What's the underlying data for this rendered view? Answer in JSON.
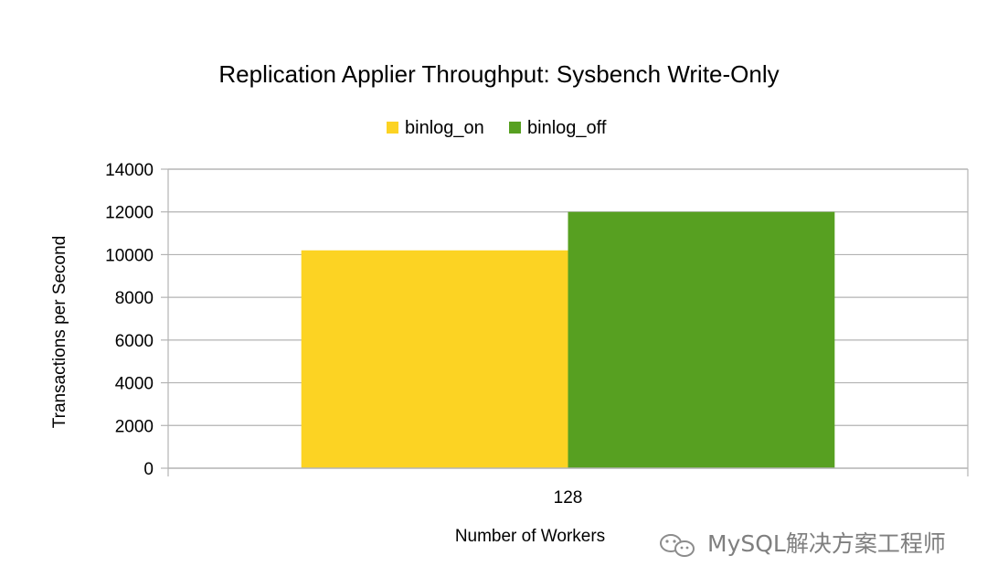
{
  "chart_data": {
    "type": "bar",
    "title": "Replication Applier Throughput: Sysbench Write-Only",
    "xlabel": "Number of Workers",
    "ylabel": "Transactions per Second",
    "categories": [
      "128"
    ],
    "series": [
      {
        "name": "binlog_on",
        "values": [
          10200
        ],
        "color": "#FCD323"
      },
      {
        "name": "binlog_off",
        "values": [
          12000
        ],
        "color": "#57A021"
      }
    ],
    "ylim": [
      0,
      14000
    ],
    "yticks": [
      0,
      2000,
      4000,
      6000,
      8000,
      10000,
      12000,
      14000
    ],
    "grid": true,
    "legend_position": "top-center"
  },
  "watermark": {
    "text": "MySQL解决方案工程师",
    "icon": "wechat-icon"
  },
  "colors": {
    "gridline": "#b3b3b3",
    "axis": "#b3b3b3",
    "watermark": "#7f7f7f"
  }
}
